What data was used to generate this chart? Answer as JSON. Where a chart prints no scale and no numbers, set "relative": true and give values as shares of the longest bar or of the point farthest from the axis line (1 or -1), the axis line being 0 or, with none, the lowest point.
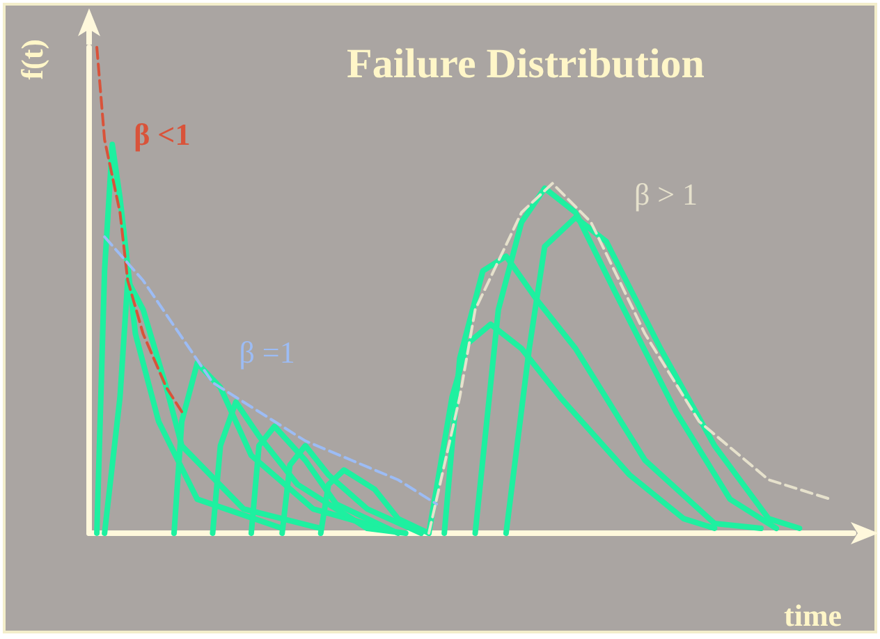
{
  "chart_data": {
    "type": "line",
    "title": "Failure Distribution",
    "xlabel": "time",
    "ylabel": "f(t)",
    "relative": true,
    "grid": false,
    "legend": false,
    "marker": "none",
    "line_style": "solid",
    "categories": [
      null,
      null,
      null,
      null,
      null,
      null,
      null,
      null,
      null,
      null,
      null,
      null,
      null,
      null,
      null,
      null,
      null,
      null,
      null,
      null,
      null,
      null,
      null,
      null,
      null,
      null,
      null,
      null,
      null,
      null,
      null,
      null,
      null,
      null,
      null,
      null,
      null,
      null,
      null,
      null,
      null,
      null,
      null,
      null,
      null,
      null,
      null,
      null,
      null,
      null,
      null,
      null,
      null,
      null,
      null,
      null,
      null,
      null,
      null,
      null,
      null,
      null,
      null,
      null,
      null,
      null,
      null,
      null,
      null,
      null,
      null,
      null,
      null,
      null,
      null,
      null,
      null,
      null,
      null,
      null,
      null,
      null,
      null,
      null,
      null,
      null,
      null,
      null,
      null,
      null,
      null,
      null,
      null,
      null,
      null,
      null,
      null,
      null,
      null,
      null
    ],
    "series": [
      {
        "color": "#1ef0a0",
        "values": [
          null,
          0,
          0.54,
          0.8,
          0.69,
          null,
          0.41,
          null,
          null,
          0.23,
          null,
          null,
          null,
          null,
          0.07,
          null,
          null,
          null,
          null,
          null,
          null,
          null,
          null,
          null,
          null,
          0.01,
          null,
          null,
          null,
          null,
          null,
          null,
          null,
          null,
          null,
          null,
          null,
          null,
          null,
          null,
          null,
          null,
          null,
          null,
          null,
          null,
          null,
          null,
          null,
          null,
          null,
          null,
          null,
          null,
          null,
          null,
          null,
          null,
          null,
          null,
          null,
          null,
          null,
          null,
          null,
          null,
          null,
          null,
          null,
          null,
          null,
          null,
          null,
          null,
          null,
          null,
          null,
          null,
          null,
          null,
          null,
          null,
          null,
          null,
          null,
          null,
          null,
          null,
          null,
          null,
          null,
          null,
          null,
          null,
          null,
          null,
          null,
          null,
          null,
          null
        ]
      },
      {
        "color": "#1ef0a0",
        "values": [
          null,
          null,
          0,
          null,
          0.28,
          0.52,
          null,
          0.46,
          null,
          null,
          0.3,
          null,
          0.18,
          null,
          null,
          null,
          null,
          null,
          null,
          null,
          0.05,
          null,
          null,
          null,
          null,
          null,
          null,
          null,
          null,
          null,
          0.01,
          null,
          null,
          null,
          null,
          null,
          null,
          null,
          null,
          null,
          null,
          null,
          null,
          null,
          null,
          null,
          null,
          null,
          null,
          null,
          null,
          null,
          null,
          null,
          null,
          null,
          null,
          null,
          null,
          null,
          null,
          null,
          null,
          null,
          null,
          null,
          null,
          null,
          null,
          null,
          null,
          null,
          null,
          null,
          null,
          null,
          null,
          null,
          null,
          null,
          null,
          null,
          null,
          null,
          null,
          null,
          null,
          null,
          null,
          null,
          null,
          null,
          null,
          null,
          null,
          null,
          null,
          null,
          null,
          null
        ]
      },
      {
        "color": "#1ef0a0",
        "values": [
          null,
          null,
          null,
          null,
          null,
          null,
          null,
          null,
          null,
          null,
          null,
          0,
          0.23,
          null,
          0.35,
          null,
          null,
          0.3,
          null,
          null,
          null,
          0.16,
          null,
          null,
          null,
          null,
          null,
          null,
          null,
          0.05,
          null,
          null,
          null,
          null,
          null,
          null,
          null,
          null,
          0.01,
          null,
          null,
          null,
          null,
          null,
          null,
          null,
          null,
          null,
          null,
          null,
          null,
          null,
          null,
          null,
          null,
          null,
          null,
          null,
          null,
          null,
          null,
          null,
          null,
          null,
          null,
          null,
          null,
          null,
          null,
          null,
          null,
          null,
          null,
          null,
          null,
          null,
          null,
          null,
          null,
          null,
          null,
          null,
          null,
          null,
          null,
          null,
          null,
          null,
          null,
          null,
          null,
          null,
          null,
          null,
          null,
          null,
          null,
          null,
          null,
          null
        ]
      },
      {
        "color": "#1ef0a0",
        "values": [
          null,
          null,
          null,
          null,
          null,
          null,
          null,
          null,
          null,
          null,
          null,
          null,
          null,
          null,
          null,
          null,
          0,
          0.18,
          null,
          0.27,
          null,
          null,
          0.2,
          null,
          null,
          null,
          null,
          0.1,
          null,
          null,
          null,
          null,
          null,
          null,
          null,
          null,
          0.01,
          null,
          null,
          null,
          null,
          0,
          null,
          null,
          null,
          null,
          null,
          null,
          null,
          null,
          null,
          null,
          null,
          null,
          null,
          null,
          null,
          null,
          null,
          null,
          null,
          null,
          null,
          null,
          null,
          null,
          null,
          null,
          null,
          null,
          null,
          null,
          null,
          null,
          null,
          null,
          null,
          null,
          null,
          null,
          null,
          null,
          null,
          null,
          null,
          null,
          null,
          null,
          null,
          null,
          null,
          null,
          null,
          null,
          null,
          null,
          null,
          null,
          null,
          null
        ]
      },
      {
        "color": "#1ef0a0",
        "values": [
          null,
          null,
          null,
          null,
          null,
          null,
          null,
          null,
          null,
          null,
          null,
          null,
          null,
          null,
          null,
          null,
          null,
          null,
          null,
          null,
          null,
          0,
          0.18,
          null,
          0.22,
          null,
          null,
          null,
          0.15,
          null,
          null,
          null,
          0.06,
          null,
          null,
          null,
          null,
          null,
          null,
          null,
          0,
          null,
          null,
          null,
          null,
          null,
          null,
          null,
          null,
          null,
          null,
          null,
          null,
          null,
          null,
          null,
          null,
          null,
          null,
          null,
          null,
          null,
          null,
          null,
          null,
          null,
          null,
          null,
          null,
          null,
          null,
          null,
          null,
          null,
          null,
          null,
          null,
          null,
          null,
          null,
          null,
          null,
          null,
          null,
          null,
          null,
          null,
          null,
          null,
          null,
          null,
          null,
          null,
          null,
          null,
          null,
          null,
          null,
          null,
          null
        ]
      },
      {
        "color": "#1ef0a0",
        "values": [
          null,
          null,
          null,
          null,
          null,
          null,
          null,
          null,
          null,
          null,
          null,
          null,
          null,
          null,
          null,
          null,
          null,
          null,
          null,
          null,
          null,
          null,
          null,
          null,
          null,
          0,
          0.14,
          null,
          0.18,
          null,
          null,
          0.12,
          null,
          null,
          null,
          null,
          0.05,
          null,
          null,
          null,
          null,
          null,
          null,
          0,
          null,
          null,
          null,
          null,
          null,
          null,
          null,
          null,
          null,
          null,
          null,
          null,
          null,
          null,
          null,
          null,
          null,
          null,
          null,
          null,
          null,
          null,
          null,
          null,
          null,
          null,
          null,
          null,
          null,
          null,
          null,
          null,
          null,
          null,
          null,
          null,
          null,
          null,
          null,
          null,
          null,
          null,
          null,
          null,
          null,
          null,
          null,
          null,
          null,
          null,
          null,
          null,
          null,
          null,
          null,
          null
        ]
      },
      {
        "color": "#1ef0a0",
        "values": [
          null,
          null,
          null,
          null,
          null,
          null,
          null,
          null,
          null,
          null,
          null,
          null,
          null,
          null,
          null,
          null,
          null,
          null,
          null,
          null,
          null,
          null,
          null,
          null,
          null,
          null,
          null,
          null,
          null,
          null,
          0,
          0.1,
          null,
          0.13,
          null,
          null,
          null,
          0.09,
          null,
          null,
          0.03,
          null,
          null,
          null,
          0,
          null,
          null,
          null,
          null,
          null,
          null,
          null,
          null,
          null,
          null,
          null,
          null,
          null,
          null,
          null,
          null,
          null,
          null,
          null,
          null,
          null,
          null,
          null,
          null,
          null,
          null,
          null,
          null,
          null,
          null,
          null,
          null,
          null,
          null,
          null,
          null,
          null,
          null,
          null,
          null,
          null,
          null,
          null,
          null,
          null,
          null,
          null,
          null,
          null,
          null,
          null,
          null,
          null,
          null,
          null
        ]
      },
      {
        "color": "#1ef0a0",
        "values": [
          null,
          null,
          null,
          null,
          null,
          null,
          null,
          null,
          null,
          null,
          null,
          null,
          null,
          null,
          null,
          null,
          null,
          null,
          null,
          null,
          null,
          null,
          null,
          null,
          null,
          null,
          null,
          null,
          null,
          null,
          null,
          null,
          null,
          null,
          null,
          null,
          null,
          null,
          null,
          null,
          null,
          null,
          null,
          null,
          0,
          null,
          null,
          0.28,
          null,
          0.39,
          null,
          null,
          0.43,
          null,
          null,
          null,
          0.38,
          null,
          null,
          null,
          null,
          0.28,
          null,
          null,
          null,
          null,
          null,
          null,
          null,
          null,
          0.12,
          null,
          null,
          null,
          null,
          null,
          null,
          0.03,
          null,
          null,
          null,
          0.01,
          null,
          null,
          null,
          null,
          null,
          null,
          null,
          null,
          null,
          null,
          null,
          null,
          null,
          null,
          null,
          null,
          null,
          null
        ]
      },
      {
        "color": "#1ef0a0",
        "values": [
          null,
          null,
          null,
          null,
          null,
          null,
          null,
          null,
          null,
          null,
          null,
          null,
          null,
          null,
          null,
          null,
          null,
          null,
          null,
          null,
          null,
          null,
          null,
          null,
          null,
          null,
          null,
          null,
          null,
          null,
          null,
          null,
          null,
          null,
          null,
          null,
          null,
          null,
          null,
          null,
          null,
          null,
          null,
          null,
          null,
          null,
          0,
          null,
          0.36,
          null,
          null,
          0.54,
          null,
          null,
          0.57,
          null,
          null,
          null,
          0.48,
          null,
          null,
          null,
          null,
          0.38,
          null,
          null,
          null,
          null,
          null,
          null,
          null,
          null,
          0.15,
          null,
          null,
          null,
          null,
          null,
          null,
          null,
          null,
          0.02,
          null,
          null,
          null,
          null,
          null,
          0.01,
          null,
          null,
          null,
          null,
          null,
          null,
          null,
          null,
          null,
          null,
          null,
          null
        ]
      },
      {
        "color": "#1ef0a0",
        "values": [
          null,
          null,
          null,
          null,
          null,
          null,
          null,
          null,
          null,
          null,
          null,
          null,
          null,
          null,
          null,
          null,
          null,
          null,
          null,
          null,
          null,
          null,
          null,
          null,
          null,
          null,
          null,
          null,
          null,
          null,
          null,
          null,
          null,
          null,
          null,
          null,
          null,
          null,
          null,
          null,
          null,
          null,
          null,
          null,
          null,
          null,
          null,
          null,
          null,
          null,
          0,
          null,
          null,
          0.46,
          null,
          null,
          0.64,
          null,
          null,
          0.71,
          null,
          null,
          null,
          0.66,
          null,
          null,
          null,
          null,
          0.5,
          null,
          null,
          null,
          null,
          null,
          null,
          null,
          0.25,
          null,
          null,
          null,
          null,
          null,
          null,
          0.07,
          null,
          null,
          null,
          null,
          null,
          0.01,
          null,
          null,
          null,
          null,
          null,
          null,
          null,
          null,
          null,
          null
        ]
      },
      {
        "color": "#1ef0a0",
        "values": [
          null,
          null,
          null,
          null,
          null,
          null,
          null,
          null,
          null,
          null,
          null,
          null,
          null,
          null,
          null,
          null,
          null,
          null,
          null,
          null,
          null,
          null,
          null,
          null,
          null,
          null,
          null,
          null,
          null,
          null,
          null,
          null,
          null,
          null,
          null,
          null,
          null,
          null,
          null,
          null,
          null,
          null,
          null,
          null,
          null,
          null,
          null,
          null,
          null,
          null,
          null,
          null,
          null,
          null,
          0,
          null,
          null,
          0.38,
          null,
          0.59,
          null,
          null,
          null,
          0.65,
          null,
          null,
          null,
          0.6,
          null,
          null,
          null,
          null,
          null,
          null,
          0.38,
          null,
          null,
          null,
          null,
          null,
          null,
          0.18,
          null,
          null,
          null,
          null,
          null,
          null,
          0.03,
          null,
          null,
          null,
          0.01,
          null,
          null,
          null,
          null,
          null,
          null,
          null
        ]
      },
      {
        "name": "β <1",
        "color": "#d9533a",
        "line_style": "dashed",
        "values": [
          null,
          1,
          0.81,
          null,
          0.66,
          0.52,
          null,
          0.41,
          null,
          null,
          0.3,
          null,
          0.25,
          null,
          null,
          null,
          null,
          null,
          null,
          null,
          null,
          null,
          null,
          null,
          null,
          null,
          null,
          null,
          null,
          null,
          null,
          null,
          null,
          null,
          null,
          null,
          null,
          null,
          null,
          null,
          null,
          null,
          null,
          null,
          null,
          null,
          null,
          null,
          null,
          null,
          null,
          null,
          null,
          null,
          null,
          null,
          null,
          null,
          null,
          null,
          null,
          null,
          null,
          null,
          null,
          null,
          null,
          null,
          null,
          null,
          null,
          null,
          null,
          null,
          null,
          null,
          null,
          null,
          null,
          null,
          null,
          null,
          null,
          null,
          null,
          null,
          null,
          null,
          null,
          null,
          null,
          null,
          null,
          null,
          null,
          null,
          null,
          null,
          null,
          null
        ]
      },
      {
        "name": "β =1",
        "color": "#9cbcf5",
        "line_style": "dashed",
        "values": [
          null,
          null,
          0.61,
          null,
          null,
          null,
          null,
          0.52,
          null,
          null,
          null,
          null,
          null,
          null,
          null,
          null,
          0.31,
          null,
          null,
          null,
          null,
          null,
          null,
          null,
          null,
          null,
          null,
          null,
          0.19,
          null,
          null,
          null,
          null,
          null,
          null,
          null,
          null,
          null,
          null,
          null,
          0.11,
          null,
          null,
          null,
          null,
          0.06,
          null,
          null,
          null,
          null,
          null,
          null,
          null,
          null,
          null,
          null,
          null,
          null,
          null,
          null,
          null,
          null,
          null,
          null,
          null,
          null,
          null,
          null,
          null,
          null,
          null,
          null,
          null,
          null,
          null,
          null,
          null,
          null,
          null,
          null,
          null,
          null,
          null,
          null,
          null,
          null,
          null,
          null,
          null,
          null,
          null,
          null,
          null,
          null,
          null,
          null,
          null,
          null,
          null,
          null
        ]
      },
      {
        "name": "β > 1",
        "color": "#e6e1cc",
        "line_style": "dashed",
        "values": [
          null,
          null,
          null,
          null,
          null,
          null,
          null,
          null,
          null,
          null,
          null,
          null,
          null,
          null,
          null,
          null,
          null,
          null,
          null,
          null,
          null,
          null,
          null,
          null,
          null,
          null,
          null,
          null,
          null,
          null,
          null,
          null,
          null,
          null,
          null,
          null,
          null,
          null,
          null,
          null,
          null,
          null,
          null,
          null,
          0,
          null,
          null,
          null,
          0.28,
          null,
          0.46,
          null,
          null,
          null,
          null,
          null,
          0.66,
          null,
          null,
          null,
          0.72,
          null,
          null,
          null,
          null,
          0.64,
          null,
          null,
          null,
          null,
          null,
          null,
          0.41,
          null,
          null,
          null,
          null,
          null,
          null,
          0.23,
          null,
          null,
          null,
          null,
          null,
          null,
          null,
          null,
          0.11,
          null,
          null,
          null,
          null,
          null,
          null,
          null,
          0.07,
          null,
          null,
          null
        ]
      }
    ]
  }
}
